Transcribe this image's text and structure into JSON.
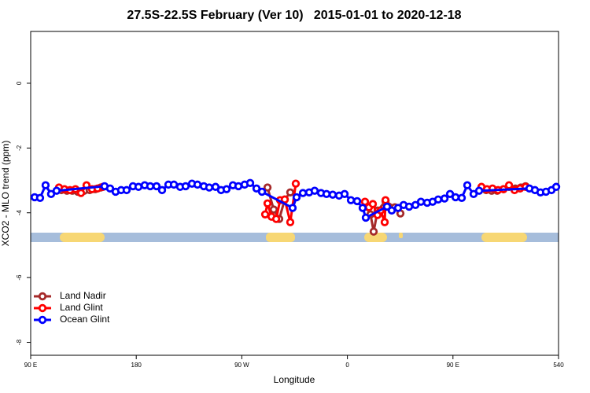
{
  "chart_data": {
    "type": "line",
    "title": "27.5S-22.5S February (Ver 10)   2015-01-01 to 2020-12-18",
    "x_label": "Longitude",
    "y_label": "XCO2 - MLO trend (ppm)",
    "xlim": [
      90,
      540
    ],
    "xticks": [
      {
        "value": 90,
        "label": "90 E"
      },
      180,
      {
        "value": 270,
        "label": "90 W"
      },
      {
        "value": 360,
        "label": "0"
      },
      {
        "value": 450,
        "label": "90 E"
      },
      540
    ],
    "ylim": [
      -8.4,
      1.6
    ],
    "yticks": [
      0,
      -2,
      -4,
      -6,
      -8
    ],
    "legend": "bottom-left",
    "series": [
      {
        "name": "Land Nadir",
        "color": "#a52a2a",
        "x": [
          116.2,
          120.9,
          125.5,
          130.2,
          135.6,
          140.3,
          145.0,
          149.7,
          null,
          291.9,
          297.2,
          301.9,
          306.6,
          311.3,
          null,
          375.7,
          379.7,
          382.4,
          385.8,
          392.5,
          400.5,
          405.2,
          null,
          478.3,
          483.0,
          487.7,
          493.1,
          497.8,
          503.2,
          507.9,
          511.9
        ],
        "values": [
          -3.3,
          -3.32,
          -3.32,
          -3.35,
          -3.32,
          -3.3,
          -3.27,
          -3.22,
          null,
          -3.22,
          -3.9,
          -4.19,
          -3.59,
          -3.37,
          null,
          -3.81,
          -4.05,
          -4.58,
          -3.93,
          -3.64,
          -3.83,
          -4.02,
          null,
          -3.3,
          -3.32,
          -3.32,
          -3.27,
          -3.2,
          -3.25,
          -3.22,
          -3.18
        ]
      },
      {
        "name": "Land Glint",
        "color": "#ff0000",
        "x": [
          114.1,
          118.8,
          123.5,
          128.2,
          132.9,
          137.6,
          142.3,
          147.0,
          151.7,
          null,
          289.9,
          291.9,
          295.3,
          299.3,
          302.6,
          306.6,
          311.3,
          316.0,
          null,
          375.0,
          378.4,
          381.7,
          385.7,
          388.4,
          391.8,
          392.5,
          null,
          474.3,
          479.0,
          483.7,
          488.4,
          493.1,
          497.8,
          502.5,
          507.2,
          511.9
        ],
        "values": [
          -3.22,
          -3.27,
          -3.3,
          -3.27,
          -3.39,
          -3.15,
          -3.27,
          -3.25,
          -3.2,
          null,
          -4.05,
          -3.71,
          -4.12,
          -4.19,
          -3.61,
          -3.59,
          -4.29,
          -3.1,
          null,
          -3.66,
          -3.83,
          -3.73,
          -4.07,
          -3.93,
          -4.29,
          -3.61,
          null,
          -3.2,
          -3.27,
          -3.25,
          -3.3,
          -3.27,
          -3.15,
          -3.3,
          -3.25,
          -3.2
        ]
      },
      {
        "name": "Ocean Glint",
        "color": "#0000ff",
        "x": [
          93.4,
          98.0,
          102.7,
          107.4,
          112.1,
          153.0,
          157.7,
          162.4,
          167.1,
          171.8,
          177.2,
          181.9,
          187.2,
          191.9,
          197.3,
          202.0,
          207.4,
          212.1,
          217.4,
          222.1,
          227.5,
          232.2,
          237.6,
          242.2,
          247.6,
          252.3,
          257.0,
          262.4,
          267.1,
          272.4,
          277.1,
          282.5,
          287.2,
          313.3,
          316.7,
          322.1,
          327.4,
          332.1,
          337.5,
          342.2,
          347.5,
          352.9,
          357.6,
          363.0,
          368.3,
          373.0,
          375.7,
          393.8,
          397.8,
          403.2,
          407.9,
          412.6,
          418.0,
          422.7,
          428.0,
          432.7,
          437.4,
          442.8,
          447.5,
          452.2,
          457.5,
          462.2,
          467.6,
          472.3,
          515.2,
          519.9,
          524.6,
          529.3,
          534.0,
          538.0
        ],
        "values": [
          -3.52,
          -3.54,
          -3.15,
          -3.42,
          -3.32,
          -3.18,
          -3.25,
          -3.35,
          -3.3,
          -3.3,
          -3.18,
          -3.2,
          -3.15,
          -3.18,
          -3.18,
          -3.3,
          -3.13,
          -3.13,
          -3.2,
          -3.18,
          -3.1,
          -3.13,
          -3.18,
          -3.22,
          -3.2,
          -3.3,
          -3.27,
          -3.15,
          -3.18,
          -3.13,
          -3.08,
          -3.25,
          -3.35,
          -3.85,
          -3.52,
          -3.39,
          -3.37,
          -3.32,
          -3.39,
          -3.42,
          -3.44,
          -3.47,
          -3.42,
          -3.61,
          -3.64,
          -3.85,
          -4.15,
          -3.81,
          -3.93,
          -3.85,
          -3.76,
          -3.81,
          -3.76,
          -3.66,
          -3.69,
          -3.66,
          -3.59,
          -3.56,
          -3.42,
          -3.52,
          -3.54,
          -3.15,
          -3.42,
          -3.32,
          -3.25,
          -3.3,
          -3.37,
          -3.35,
          -3.3,
          -3.2
        ]
      }
    ]
  }
}
